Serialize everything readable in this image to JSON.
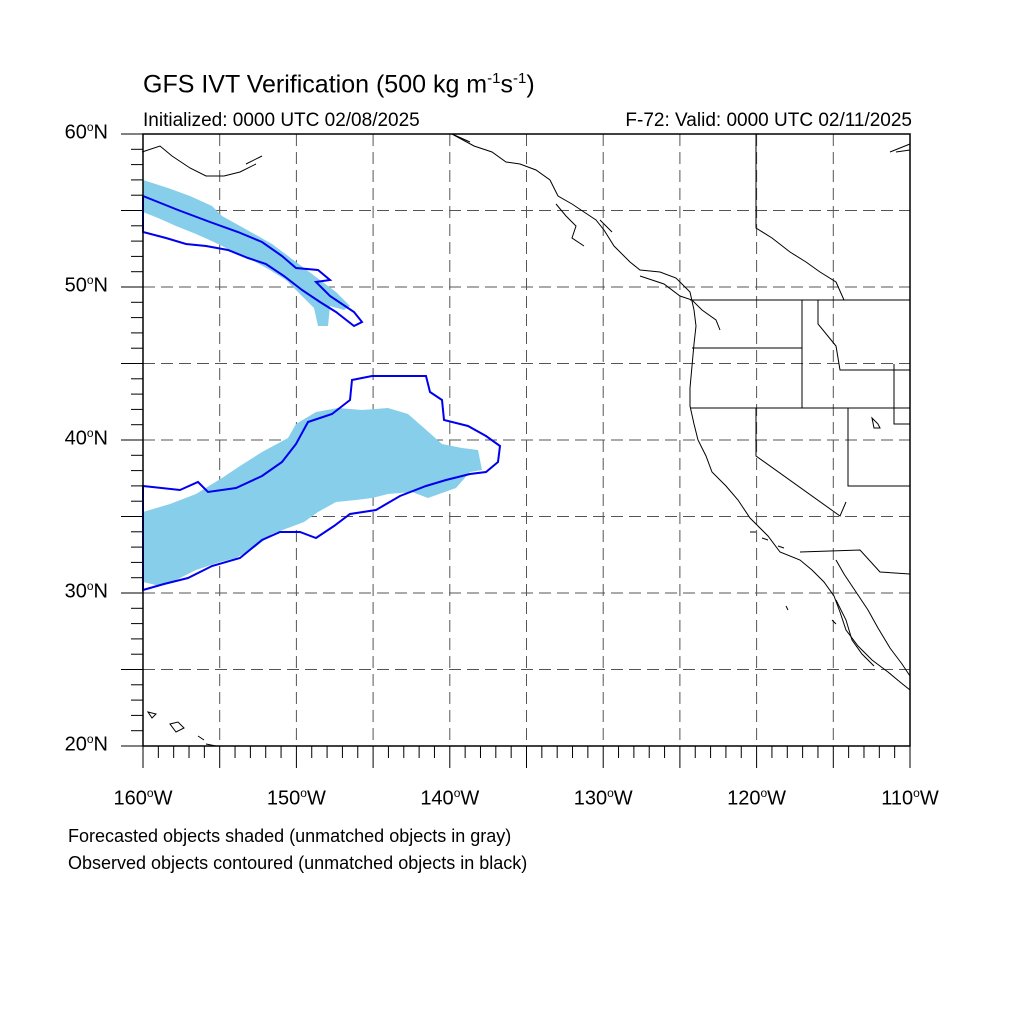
{
  "title": {
    "prefix": "GFS IVT Verification (500 kg m",
    "exp1": "-1",
    "mid": "s",
    "exp2": "-1",
    "suffix": ")"
  },
  "subtitle_left": "Initialized: 0000 UTC 02/08/2025",
  "subtitle_right": "F-72: Valid: 0000 UTC 02/11/2025",
  "degree_symbol": "o",
  "lat_labels": [
    {
      "num": "60",
      "hem": "N",
      "lat": 60
    },
    {
      "num": "50",
      "hem": "N",
      "lat": 50
    },
    {
      "num": "40",
      "hem": "N",
      "lat": 40
    },
    {
      "num": "30",
      "hem": "N",
      "lat": 30
    },
    {
      "num": "20",
      "hem": "N",
      "lat": 20
    }
  ],
  "lon_labels": [
    {
      "num": "160",
      "hem": "W",
      "lon": -160
    },
    {
      "num": "150",
      "hem": "W",
      "lon": -150
    },
    {
      "num": "140",
      "hem": "W",
      "lon": -140
    },
    {
      "num": "130",
      "hem": "W",
      "lon": -130
    },
    {
      "num": "120",
      "hem": "W",
      "lon": -120
    },
    {
      "num": "110",
      "hem": "W",
      "lon": -110
    }
  ],
  "notes": [
    "Forecasted objects shaded (unmatched objects in gray)",
    "Observed objects contoured (unmatched objects in black)"
  ],
  "map": {
    "lon_range": [
      -160,
      -110
    ],
    "lat_range": [
      20,
      60
    ],
    "grid_lons": [
      -155,
      -150,
      -145,
      -140,
      -135,
      -130,
      -125,
      -120,
      -115
    ],
    "grid_lats": [
      25,
      30,
      35,
      40,
      45,
      50,
      55
    ],
    "colors": {
      "forecast_fill": "#87ceeb",
      "observed_contour": "#0000ee",
      "coast": "#000000",
      "grid": "#555555"
    }
  }
}
